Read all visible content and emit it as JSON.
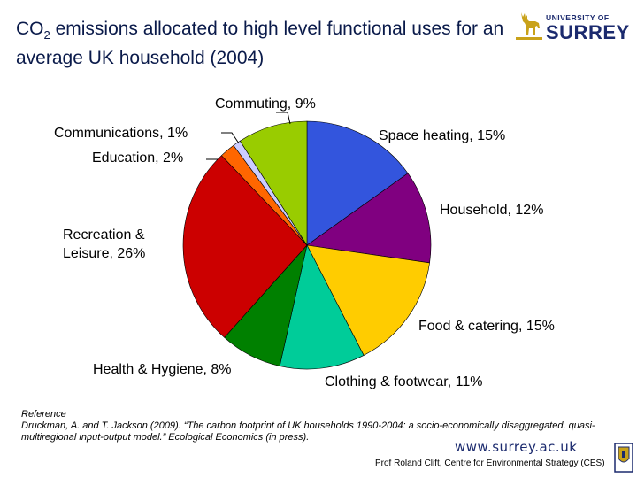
{
  "title": {
    "prefix": "CO",
    "subscript": "2",
    "rest": " emissions allocated to high level functional uses for an average UK household (2004)"
  },
  "logo": {
    "line1": "UNIVERSITY OF",
    "line2": "SURREY"
  },
  "chart_data": {
    "type": "pie",
    "start_angle_deg": 0,
    "direction": "clockwise",
    "slices": [
      {
        "label": "Space heating, 15%",
        "value": 15,
        "color": "#3355dd"
      },
      {
        "label": "Household, 12%",
        "value": 12,
        "color": "#800080"
      },
      {
        "label": "Food & catering, 15%",
        "value": 15,
        "color": "#ffcc00"
      },
      {
        "label": "Clothing & footwear, 11%",
        "value": 11,
        "color": "#00cc99"
      },
      {
        "label": "Health & Hygiene, 8%",
        "value": 8,
        "color": "#008000"
      },
      {
        "label": "Recreation & Leisure, 26%",
        "value": 26,
        "color": "#cc0000"
      },
      {
        "label": "Education, 2%",
        "value": 2,
        "color": "#ff6600"
      },
      {
        "label": "Communications, 1%",
        "value": 1,
        "color": "#ccccff"
      },
      {
        "label": "Commuting, 9%",
        "value": 9,
        "color": "#99cc00"
      }
    ]
  },
  "reference": {
    "heading": "Reference",
    "text": "Druckman, A. and T. Jackson (2009). “The carbon footprint of UK households 1990-2004: a socio-economically disaggregated, quasi-multiregional input-output model.” Ecological Economics (in press)."
  },
  "footer": {
    "url": "www.surrey.ac.uk",
    "credit": "Prof Roland Clift, Centre for Environmental Strategy (CES)"
  }
}
